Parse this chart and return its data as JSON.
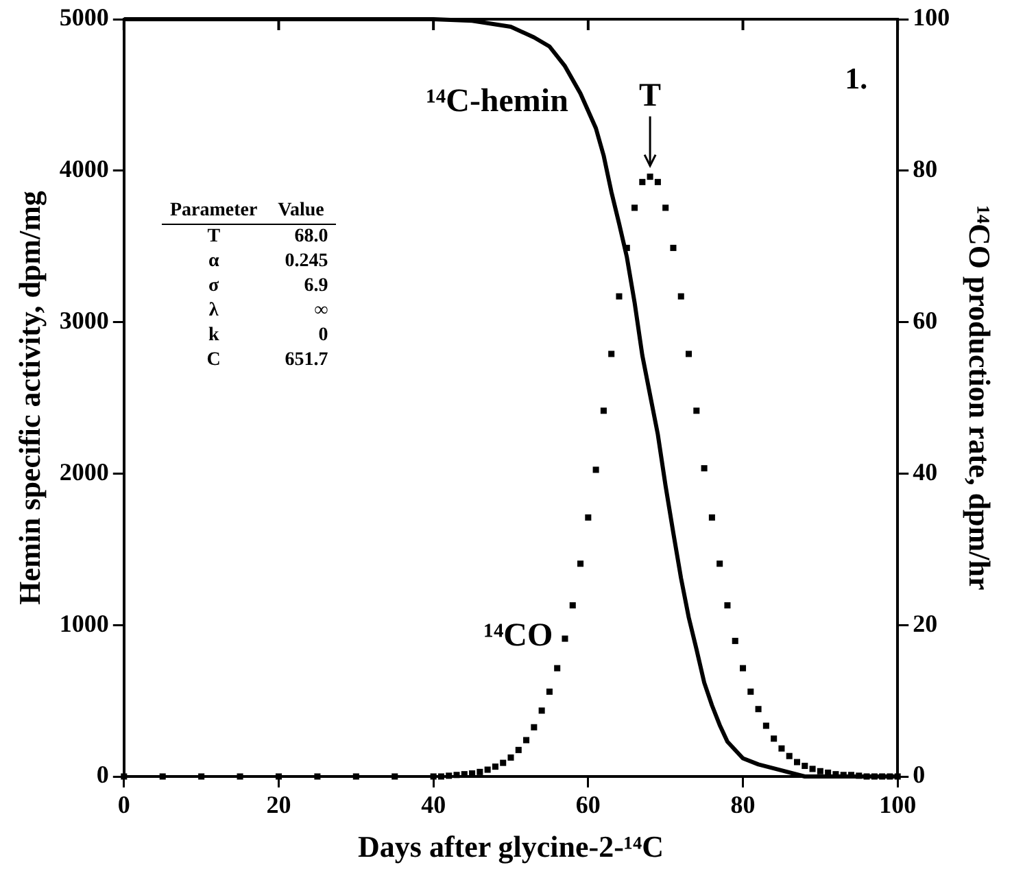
{
  "chart_data": {
    "type": "line",
    "xlabel": "Days after glycine-2-¹⁴C",
    "ylabel": "Hemin specific activity, dpm/mg",
    "y2label": "¹⁴CO production rate, dpm/hr",
    "xlim": [
      0,
      100
    ],
    "xticks": [
      0,
      20,
      40,
      60,
      80,
      100
    ],
    "ylim": [
      0,
      5000
    ],
    "yticks": [
      0,
      1000,
      2000,
      3000,
      4000,
      5000
    ],
    "y2lim": [
      0,
      100
    ],
    "y2ticks": [
      0,
      20,
      40,
      60,
      80,
      100
    ],
    "grid": false,
    "legend": false,
    "series": [
      {
        "type": "line",
        "color": "#000000",
        "marker": "none",
        "x": [
          0,
          10,
          20,
          30,
          40,
          45,
          50,
          53,
          55,
          57,
          59,
          61,
          62,
          63,
          64,
          65,
          66,
          67,
          68,
          69,
          70,
          71,
          72,
          73,
          74,
          75,
          76,
          77,
          78,
          80,
          82,
          85,
          88,
          90,
          95,
          100
        ],
        "values": [
          5000,
          5000,
          5000,
          5000,
          5000,
          4990,
          4950,
          4880,
          4820,
          4690,
          4510,
          4280,
          4100,
          3860,
          3650,
          3430,
          3130,
          2780,
          2520,
          2260,
          1920,
          1610,
          1310,
          1050,
          840,
          620,
          470,
          340,
          230,
          120,
          80,
          40,
          0,
          0,
          0,
          0
        ]
      },
      {
        "type": "scatter",
        "axis": "y2",
        "color": "#000000",
        "marker": "square",
        "x": [
          0,
          5,
          10,
          15,
          20,
          25,
          30,
          35,
          40,
          41,
          42,
          43,
          44,
          45,
          46,
          47,
          48,
          49,
          50,
          51,
          52,
          53,
          54,
          55,
          56,
          57,
          58,
          59,
          60,
          61,
          62,
          63,
          64,
          65,
          66,
          67,
          68,
          69,
          70,
          71,
          72,
          73,
          74,
          75,
          76,
          77,
          78,
          79,
          80,
          81,
          82,
          83,
          84,
          85,
          86,
          87,
          88,
          89,
          90,
          91,
          92,
          93,
          94,
          95,
          96,
          97,
          98,
          99,
          100
        ],
        "values": [
          0,
          0,
          0,
          0,
          0,
          0,
          0,
          0,
          0,
          0,
          0.1,
          0.2,
          0.3,
          0.4,
          0.6,
          0.9,
          1.3,
          1.8,
          2.5,
          3.5,
          4.8,
          6.5,
          8.7,
          11.2,
          14.3,
          18.2,
          22.6,
          28.1,
          34.2,
          40.5,
          48.3,
          55.8,
          63.4,
          69.8,
          75.1,
          78.5,
          79.2,
          78.5,
          75.1,
          69.8,
          63.4,
          55.8,
          48.3,
          40.7,
          34.2,
          28.1,
          22.6,
          17.9,
          14.3,
          11.2,
          8.9,
          6.7,
          5,
          3.7,
          2.7,
          1.9,
          1.4,
          1,
          0.7,
          0.5,
          0.3,
          0.2,
          0.2,
          0.1,
          0,
          0,
          0,
          0,
          0
        ]
      }
    ],
    "annotations": [
      {
        "text": "¹⁴C-hemin",
        "x": 58.5,
        "y": 4450
      },
      {
        "text": "¹⁴CO",
        "x": 56.5,
        "y": 920
      },
      {
        "text": "T",
        "x": 68,
        "y": 3960
      },
      "1.",
      "Parameter",
      "Value",
      "T",
      "68.0",
      "α",
      "0.245",
      "σ",
      "6.9",
      "λ",
      "∞",
      "k",
      "0",
      "C",
      "651.7"
    ]
  }
}
